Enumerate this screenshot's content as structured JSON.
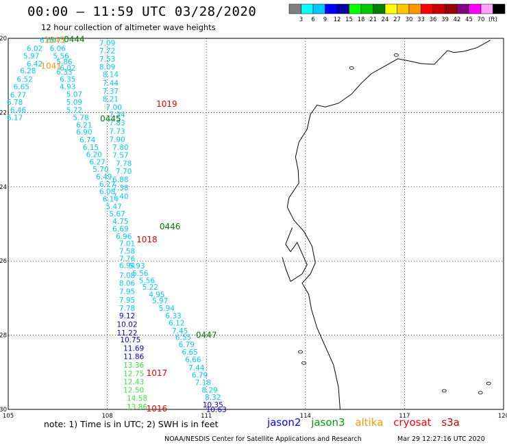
{
  "header": {
    "title": "00:00 – 11:59 UTC 03/28/2020",
    "subtitle": "12 hour collection of altimeter wave heights"
  },
  "colorbar": {
    "colors": [
      "#808080",
      "#00ffff",
      "#00c8ff",
      "#0000ff",
      "#0000a0",
      "#00ff00",
      "#00c800",
      "#008000",
      "#ffff00",
      "#ffc800",
      "#ff9600",
      "#ff0000",
      "#c80000",
      "#960000",
      "#800080",
      "#ff00ff",
      "#ffa0ff",
      "#000000"
    ],
    "labels": [
      "3",
      "6",
      "9",
      "12",
      "15",
      "18",
      "21",
      "24",
      "27",
      "30",
      "33",
      "36",
      "39",
      "42",
      "45",
      "70",
      "(ft)"
    ]
  },
  "axes": {
    "lon_ticks": [
      "105",
      "108",
      "111",
      "114",
      "117",
      "120"
    ],
    "lat_ticks": [
      "-20",
      "-22",
      "-24",
      "-26",
      "-28",
      "-30"
    ]
  },
  "tracks": [
    {
      "satellite": "jason3",
      "color": "#00c8ff",
      "points": [
        {
          "lon": 106.2,
          "lat": -20.05,
          "v": "6.60"
        },
        {
          "lon": 106.5,
          "lat": -20.05,
          "v": "5.71"
        },
        {
          "lon": 105.8,
          "lat": -20.27,
          "v": "6.02"
        },
        {
          "lon": 106.5,
          "lat": -20.27,
          "v": "6.06"
        },
        {
          "lon": 105.7,
          "lat": -20.47,
          "v": "5.97"
        },
        {
          "lon": 106.6,
          "lat": -20.47,
          "v": "5.56"
        },
        {
          "lon": 105.8,
          "lat": -20.68,
          "v": "6.42"
        },
        {
          "lon": 106.7,
          "lat": -20.63,
          "v": "5.86"
        },
        {
          "lon": 106.8,
          "lat": -20.79,
          "v": "6.02"
        },
        {
          "lon": 105.6,
          "lat": -20.87,
          "v": "6.28"
        },
        {
          "lon": 106.7,
          "lat": -20.9,
          "v": "6.33"
        },
        {
          "lon": 105.5,
          "lat": -21.1,
          "v": "6.52"
        },
        {
          "lon": 106.8,
          "lat": -21.1,
          "v": "6.35"
        },
        {
          "lon": 105.4,
          "lat": -21.3,
          "v": "6.65"
        },
        {
          "lon": 106.8,
          "lat": -21.3,
          "v": "4.93"
        },
        {
          "lon": 105.3,
          "lat": -21.52,
          "v": "6.77"
        },
        {
          "lon": 107.0,
          "lat": -21.5,
          "v": "5.07"
        },
        {
          "lon": 105.2,
          "lat": -21.72,
          "v": "6.78"
        },
        {
          "lon": 107.0,
          "lat": -21.72,
          "v": "5.09"
        },
        {
          "lon": 105.3,
          "lat": -21.93,
          "v": "6.46"
        },
        {
          "lon": 107.0,
          "lat": -21.93,
          "v": "5.72"
        },
        {
          "lon": 105.2,
          "lat": -22.13,
          "v": "6.17"
        },
        {
          "lon": 107.2,
          "lat": -22.13,
          "v": "5.78"
        },
        {
          "lon": 107.3,
          "lat": -22.33,
          "v": "6.21"
        },
        {
          "lon": 107.3,
          "lat": -22.52,
          "v": "6.90"
        },
        {
          "lon": 107.4,
          "lat": -22.73,
          "v": "6.74"
        },
        {
          "lon": 107.5,
          "lat": -22.93,
          "v": "6.15"
        },
        {
          "lon": 107.6,
          "lat": -23.13,
          "v": "6.20"
        },
        {
          "lon": 107.7,
          "lat": -23.33,
          "v": "6.27"
        },
        {
          "lon": 107.8,
          "lat": -23.52,
          "v": "5.70"
        },
        {
          "lon": 107.9,
          "lat": -23.73,
          "v": "6.49"
        },
        {
          "lon": 108.0,
          "lat": -23.93,
          "v": "6.27"
        },
        {
          "lon": 108.0,
          "lat": -24.12,
          "v": "6.08"
        },
        {
          "lon": 108.1,
          "lat": -24.33,
          "v": "6.14"
        },
        {
          "lon": 108.2,
          "lat": -24.53,
          "v": "5.47"
        },
        {
          "lon": 108.3,
          "lat": -24.72,
          "v": "5.67"
        },
        {
          "lon": 108.4,
          "lat": -24.93,
          "v": "4.75"
        },
        {
          "lon": 108.4,
          "lat": -25.13,
          "v": "6.69"
        },
        {
          "lon": 108.5,
          "lat": -25.33,
          "v": "6.96"
        },
        {
          "lon": 108.6,
          "lat": -25.53,
          "v": "7.01"
        },
        {
          "lon": 108.6,
          "lat": -25.73,
          "v": "7.58"
        },
        {
          "lon": 108.6,
          "lat": -25.93,
          "v": "7.76"
        },
        {
          "lon": 108.6,
          "lat": -26.12,
          "v": "6.94"
        },
        {
          "lon": 108.9,
          "lat": -26.13,
          "v": "5.93"
        },
        {
          "lon": 109.0,
          "lat": -26.33,
          "v": "5.56"
        },
        {
          "lon": 108.6,
          "lat": -26.38,
          "v": "7.08"
        },
        {
          "lon": 109.2,
          "lat": -26.52,
          "v": "5.56"
        },
        {
          "lon": 108.6,
          "lat": -26.6,
          "v": "8.06"
        },
        {
          "lon": 109.3,
          "lat": -26.7,
          "v": "5.22"
        },
        {
          "lon": 108.6,
          "lat": -26.82,
          "v": "7.95"
        },
        {
          "lon": 109.5,
          "lat": -26.9,
          "v": "4.95"
        },
        {
          "lon": 108.6,
          "lat": -27.05,
          "v": "7.95"
        },
        {
          "lon": 109.6,
          "lat": -27.07,
          "v": "5.97"
        },
        {
          "lon": 108.6,
          "lat": -27.27,
          "v": "7.78"
        },
        {
          "lon": 109.8,
          "lat": -27.27,
          "v": "5.94"
        },
        {
          "lon": 110.0,
          "lat": -27.47,
          "v": "6.33"
        },
        {
          "lon": 110.1,
          "lat": -27.67,
          "v": "6.12"
        },
        {
          "lon": 110.2,
          "lat": -27.88,
          "v": "7.45"
        },
        {
          "lon": 110.3,
          "lat": -28.05,
          "v": "6.55"
        },
        {
          "lon": 110.4,
          "lat": -28.25,
          "v": "6.79"
        },
        {
          "lon": 110.5,
          "lat": -28.45,
          "v": "6.65"
        },
        {
          "lon": 110.6,
          "lat": -28.65,
          "v": "6.66"
        },
        {
          "lon": 110.7,
          "lat": -28.87,
          "v": "7.44"
        },
        {
          "lon": 110.8,
          "lat": -29.07,
          "v": "6.79"
        },
        {
          "lon": 110.9,
          "lat": -29.27,
          "v": "7.18"
        },
        {
          "lon": 111.1,
          "lat": -29.47,
          "v": "8.29"
        },
        {
          "lon": 111.2,
          "lat": -29.67,
          "v": "8.32"
        }
      ]
    },
    {
      "satellite": "jason3-b",
      "color": "#00c8ff",
      "points": [
        {
          "lon": 108.0,
          "lat": -20.12,
          "v": "7.09"
        },
        {
          "lon": 108.0,
          "lat": -20.33,
          "v": "7.72"
        },
        {
          "lon": 108.0,
          "lat": -20.55,
          "v": "7.53"
        },
        {
          "lon": 108.0,
          "lat": -20.77,
          "v": "8.09"
        },
        {
          "lon": 108.1,
          "lat": -20.97,
          "v": "8.14"
        },
        {
          "lon": 108.1,
          "lat": -21.2,
          "v": "7.44"
        },
        {
          "lon": 108.1,
          "lat": -21.42,
          "v": "7.37"
        },
        {
          "lon": 108.1,
          "lat": -21.63,
          "v": "8.21"
        },
        {
          "lon": 108.2,
          "lat": -21.85,
          "v": "7.00"
        },
        {
          "lon": 108.3,
          "lat": -22.05,
          "v": "7.34"
        },
        {
          "lon": 108.3,
          "lat": -22.27,
          "v": "7.83"
        },
        {
          "lon": 108.3,
          "lat": -22.5,
          "v": "7.73"
        },
        {
          "lon": 108.3,
          "lat": -22.72,
          "v": "7.90"
        },
        {
          "lon": 108.4,
          "lat": -22.93,
          "v": "7.80"
        },
        {
          "lon": 108.4,
          "lat": -23.15,
          "v": "7.57"
        },
        {
          "lon": 108.5,
          "lat": -23.37,
          "v": "7.78"
        },
        {
          "lon": 108.5,
          "lat": -23.58,
          "v": "7.70"
        },
        {
          "lon": 108.4,
          "lat": -23.8,
          "v": "6.88"
        },
        {
          "lon": 108.4,
          "lat": -24.02,
          "v": "7.38"
        },
        {
          "lon": 108.4,
          "lat": -24.25,
          "v": "7.40"
        }
      ]
    },
    {
      "satellite": "jason2",
      "color": "#0000c8",
      "points": [
        {
          "lon": 108.6,
          "lat": -27.47,
          "v": "9.12"
        },
        {
          "lon": 108.6,
          "lat": -27.7,
          "v": "10.02"
        },
        {
          "lon": 108.6,
          "lat": -27.93,
          "v": "11.22"
        },
        {
          "lon": 108.7,
          "lat": -28.12,
          "v": "10.75"
        },
        {
          "lon": 108.8,
          "lat": -28.35,
          "v": "11.69"
        },
        {
          "lon": 108.8,
          "lat": -28.57,
          "v": "11.86"
        },
        {
          "lon": 111.2,
          "lat": -29.87,
          "v": "10.35"
        },
        {
          "lon": 111.3,
          "lat": -30.0,
          "v": "10.63"
        }
      ]
    },
    {
      "satellite": "jason3-green",
      "color": "#40e040",
      "points": [
        {
          "lon": 108.8,
          "lat": -28.8,
          "v": "13.36"
        },
        {
          "lon": 108.8,
          "lat": -29.03,
          "v": "12.75"
        },
        {
          "lon": 108.8,
          "lat": -29.25,
          "v": "12.43"
        },
        {
          "lon": 108.8,
          "lat": -29.47,
          "v": "12.50"
        },
        {
          "lon": 108.9,
          "lat": -29.7,
          "v": "14.58"
        },
        {
          "lon": 108.9,
          "lat": -29.93,
          "v": "13.86"
        }
      ]
    }
  ],
  "pass_labels": [
    {
      "text": "0444",
      "color": "#007800",
      "lon": 107.0,
      "lat": -20.03
    },
    {
      "text": "1043",
      "color": "#ff9600",
      "lon": 106.4,
      "lat": -20.05
    },
    {
      "text": "1041",
      "color": "#ff9600",
      "lon": 106.3,
      "lat": -20.75
    },
    {
      "text": "1019",
      "color": "#e00000",
      "lon": 109.8,
      "lat": -21.77
    },
    {
      "text": "0445",
      "color": "#007800",
      "lon": 108.1,
      "lat": -22.17
    },
    {
      "text": "0446",
      "color": "#007800",
      "lon": 109.9,
      "lat": -25.07
    },
    {
      "text": "1018",
      "color": "#e00000",
      "lon": 109.2,
      "lat": -25.42
    },
    {
      "text": "0447",
      "color": "#007800",
      "lon": 111.0,
      "lat": -28.0
    },
    {
      "text": "1017",
      "color": "#e00000",
      "lon": 109.5,
      "lat": -29.02
    },
    {
      "text": "1016",
      "color": "#e00000",
      "lon": 109.5,
      "lat": -29.98
    }
  ],
  "footer": {
    "note": "note: 1) Time is in UTC; 2) SWH is in feet",
    "legend": [
      {
        "name": "jason2",
        "color": "#0000ff"
      },
      {
        "name": "jason3",
        "color": "#00a000"
      },
      {
        "name": "altika",
        "color": "#ff9600"
      },
      {
        "name": "cryosat",
        "color": "#ff0000"
      },
      {
        "name": "s3a",
        "color": "#c00000"
      }
    ],
    "credit": "NOAA/NESDIS Center for Satellite Applications and Research",
    "timestamp": "Mar 29 12:27:16 UTC 2020"
  }
}
